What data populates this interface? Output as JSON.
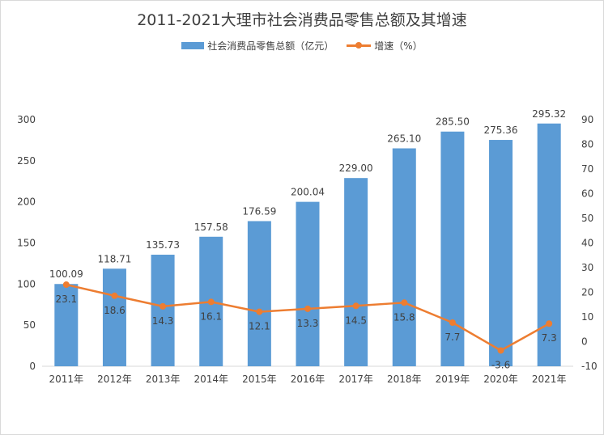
{
  "chart_data": {
    "type": "bar",
    "title": "2011-2021大理市社会消费品零售总额及其增速",
    "categories": [
      "2011年",
      "2012年",
      "2013年",
      "2014年",
      "2015年",
      "2016年",
      "2017年",
      "2018年",
      "2019年",
      "2020年",
      "2021年"
    ],
    "series": [
      {
        "name": "社会消费品零售总额（亿元）",
        "type": "bar",
        "axis": "left",
        "color": "#5b9bd5",
        "values": [
          100.09,
          118.71,
          135.73,
          157.58,
          176.59,
          200.04,
          229.0,
          265.1,
          285.5,
          275.36,
          295.32
        ],
        "labels": [
          "100.09",
          "118.71",
          "135.73",
          "157.58",
          "176.59",
          "200.04",
          "229.00",
          "265.10",
          "285.50",
          "275.36",
          "295.32"
        ]
      },
      {
        "name": "增速（%）",
        "type": "line",
        "axis": "right",
        "color": "#ed7d31",
        "values": [
          23.1,
          18.6,
          14.3,
          16.1,
          12.1,
          13.3,
          14.5,
          15.8,
          7.7,
          -3.6,
          7.3
        ],
        "labels": [
          "23.1",
          "18.6",
          "14.3",
          "16.1",
          "12.1",
          "13.3",
          "14.5",
          "15.8",
          "7.7",
          "-3.6",
          "7.3"
        ]
      }
    ],
    "y_left": {
      "min": 0,
      "max": 300,
      "ticks": [
        "0",
        "50",
        "100",
        "150",
        "200",
        "250",
        "300"
      ]
    },
    "y_right": {
      "min": -10,
      "max": 90,
      "ticks": [
        "-10",
        "0",
        "10",
        "20",
        "30",
        "40",
        "50",
        "60",
        "70",
        "80",
        "90"
      ]
    },
    "grid": false,
    "legend_position": "top"
  }
}
